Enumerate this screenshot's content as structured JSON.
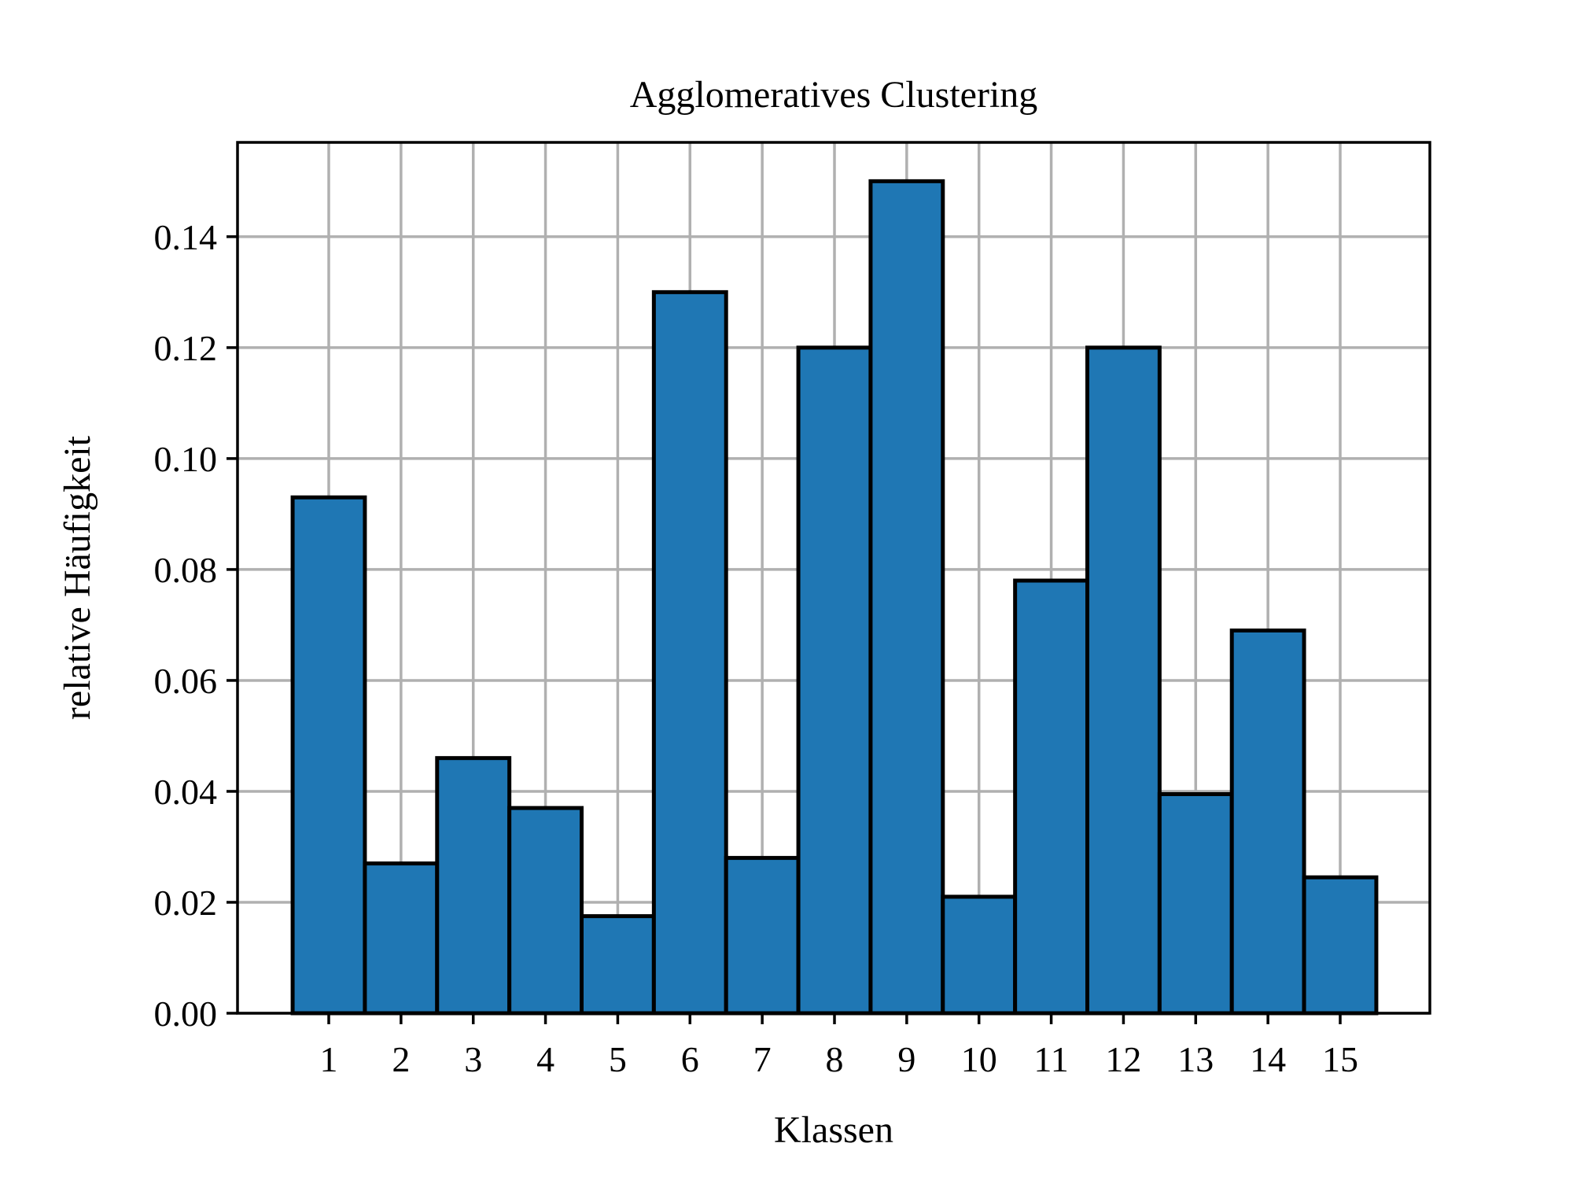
{
  "chart_data": {
    "type": "bar",
    "title": "Agglomeratives Clustering",
    "xlabel": "Klassen",
    "ylabel": "relative Häufigkeit",
    "categories": [
      "1",
      "2",
      "3",
      "4",
      "5",
      "6",
      "7",
      "8",
      "9",
      "10",
      "11",
      "12",
      "13",
      "14",
      "15"
    ],
    "values": [
      0.093,
      0.027,
      0.046,
      0.037,
      0.0175,
      0.13,
      0.028,
      0.12,
      0.15,
      0.021,
      0.078,
      0.12,
      0.0395,
      0.069,
      0.0245
    ],
    "ylim": [
      0,
      0.157
    ],
    "yticks": [
      "0.00",
      "0.02",
      "0.04",
      "0.06",
      "0.08",
      "0.10",
      "0.12",
      "0.14"
    ],
    "grid": true,
    "colors": {
      "bar": "#1f77b4",
      "edge": "#000000",
      "grid": "#b0b0b0"
    }
  }
}
